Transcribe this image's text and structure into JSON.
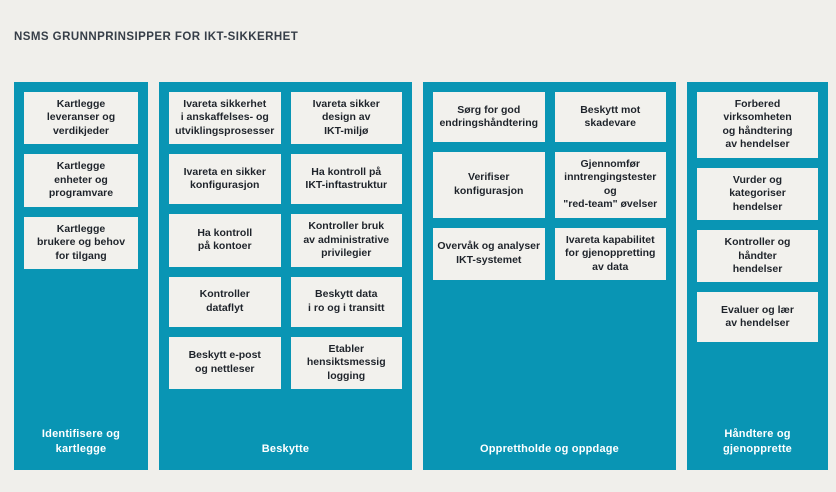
{
  "title": "NSMS GRUNNPRINSIPPER FOR IKT-SIKKERHET",
  "colors": {
    "teal": "#0995b4",
    "card_bg": "#f2f1ed",
    "page_bg": "#f0efeb",
    "title_text": "#363e48",
    "card_text": "#1f242b",
    "label_text": "#ffffff"
  },
  "columns": [
    {
      "label": "Identifisere og\nkartlegge",
      "cards": [
        "Kartlegge\nleveranser og\nverdikjeder",
        "Kartlegge\nenheter og\nprogramvare",
        "Kartlegge\nbrukere og behov\nfor tilgang"
      ]
    },
    {
      "label": "Beskytte",
      "cards": [
        "Ivareta sikkerhet\ni anskaffelses- og\nutviklingsprosesser",
        "Ivareta sikker\ndesign av\nIKT-miljø",
        "Ivareta en sikker\nkonfigurasjon",
        "Ha kontroll på\nIKT-inftastruktur",
        "Ha kontroll\npå kontoer",
        "Kontroller bruk\nav administrative\nprivilegier",
        "Kontroller\ndataflyt",
        "Beskytt data\ni ro og i transitt",
        "Beskytt e-post\nog nettleser",
        "Etabler\nhensiktsmessig\nlogging"
      ]
    },
    {
      "label": "Opprettholde og oppdage",
      "cards": [
        "Sørg for god\nendringshåndtering",
        "Beskytt mot\nskadevare",
        "Verifiser\nkonfigurasjon",
        "Gjennomfør\ninntrengingstester og\n\"red-team\" øvelser",
        "Overvåk og analyser\nIKT-systemet",
        "Ivareta kapabilitet\nfor gjenoppretting\nav data"
      ]
    },
    {
      "label": "Håndtere og\ngjenopprette",
      "cards": [
        "Forbered\nvirksomheten\nog håndtering\nav hendelser",
        "Vurder og\nkategoriser\nhendelser",
        "Kontroller og\nhåndter\nhendelser",
        "Evaluer og lær\nav hendelser"
      ]
    }
  ]
}
